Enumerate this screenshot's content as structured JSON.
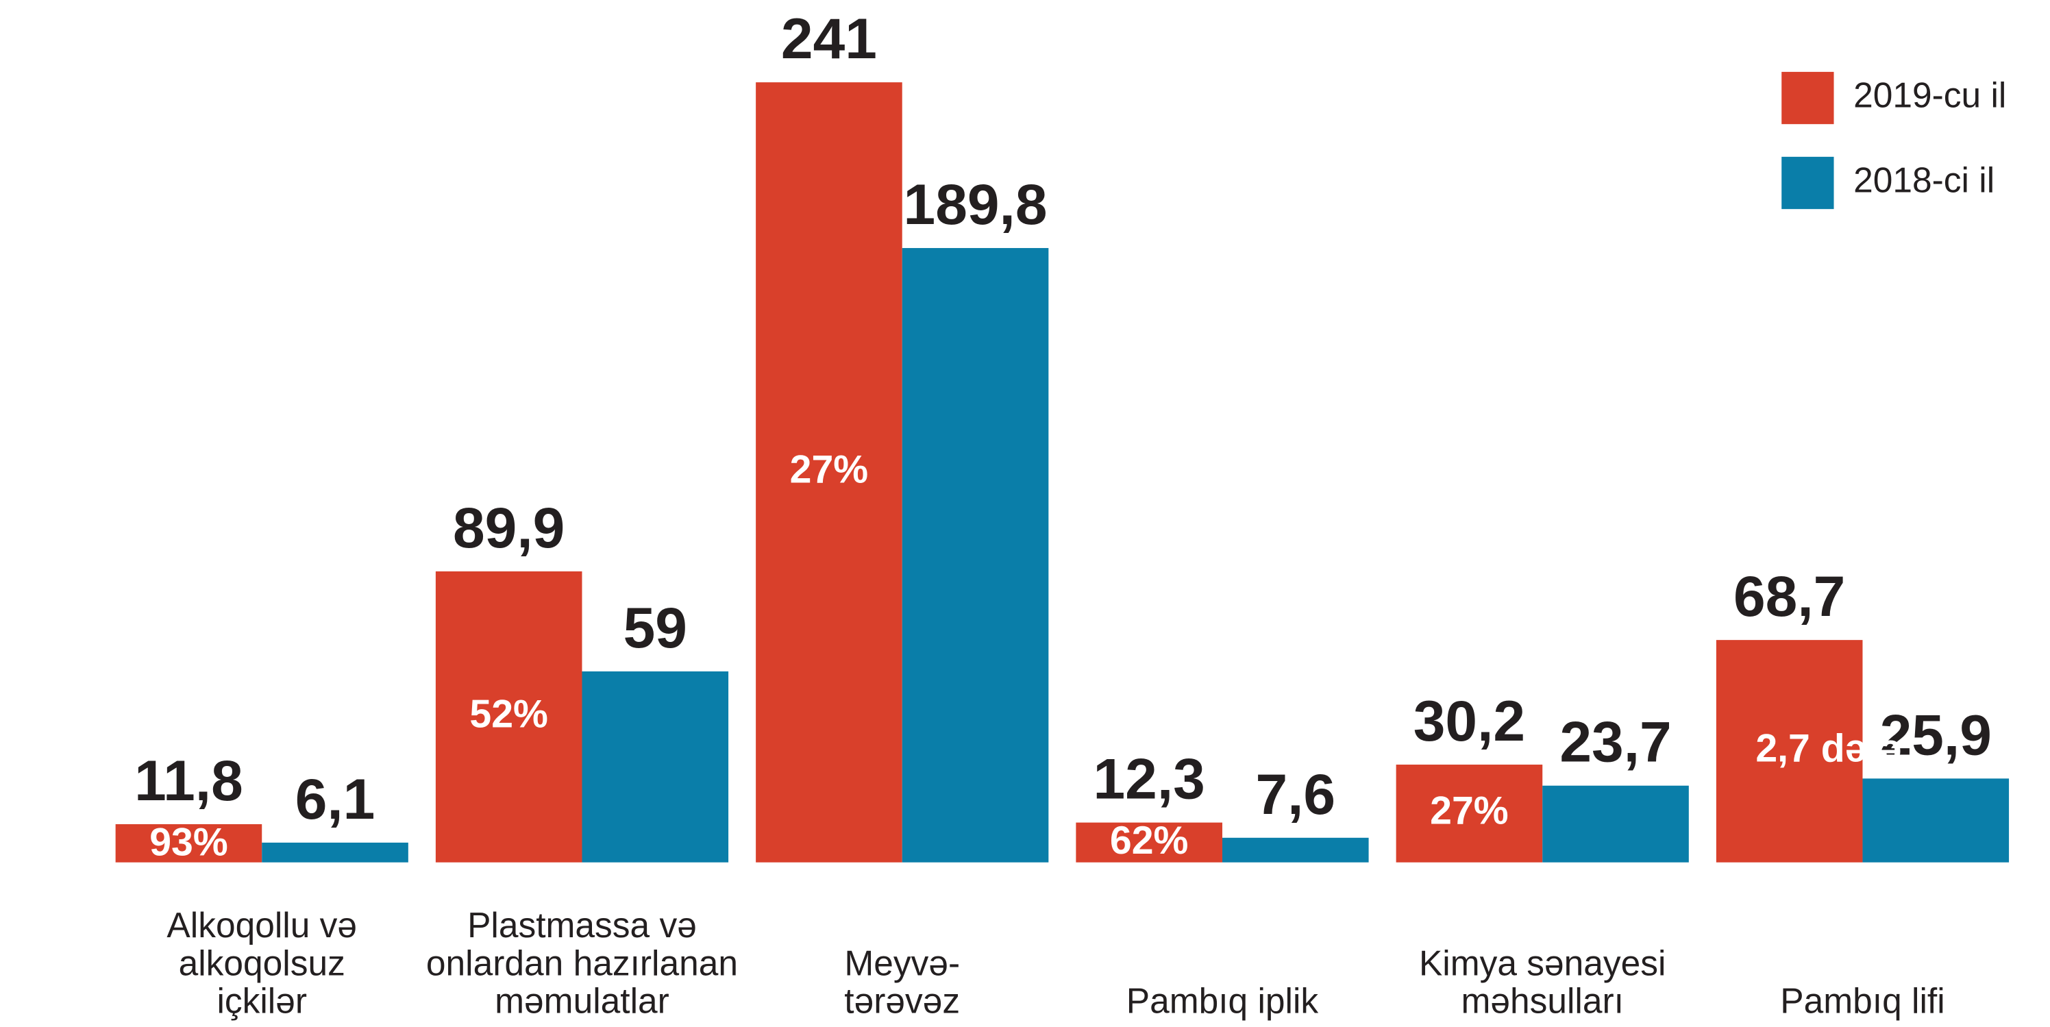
{
  "chart_data": {
    "type": "bar",
    "categories": [
      "Alkoqollu və\nalkoqolsuz\niçkilər",
      "Plastmassa və\nonlardan hazırlanan\nməmulatlar",
      "Meyvə-\ntərəvəz",
      "Pambıq iplik",
      "Kimya sənayesi\nməhsulları",
      "Pambıq lifi"
    ],
    "series": [
      {
        "name": "2019-cu il",
        "color": "#d9402b",
        "values": [
          11.8,
          89.9,
          241,
          12.3,
          30.2,
          68.7
        ],
        "value_labels": [
          "11,8",
          "89,9",
          "241",
          "12,3",
          "30,2",
          "68,7"
        ]
      },
      {
        "name": "2018-ci il",
        "color": "#0a7ea9",
        "values": [
          6.1,
          59,
          189.8,
          7.6,
          23.7,
          25.9
        ],
        "value_labels": [
          "6,1",
          "59",
          "189,8",
          "7,6",
          "23,7",
          "25,9"
        ]
      }
    ],
    "annotations": [
      "93%",
      "52%",
      "27%",
      "62%",
      "27%",
      "2,7 dəfə"
    ],
    "ylim": [
      0,
      241
    ],
    "legend": "top-right"
  }
}
